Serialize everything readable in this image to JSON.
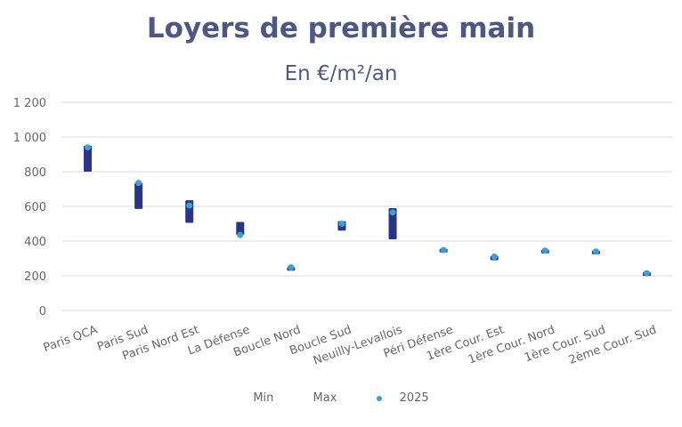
{
  "chart_data": {
    "type": "range-bar",
    "title": "Loyers de première main",
    "subtitle": "En €/m²/an",
    "xlabel": "",
    "ylabel": "",
    "ylim": [
      0,
      1200
    ],
    "yticks": [
      0,
      200,
      400,
      600,
      800,
      1000,
      1200
    ],
    "ytick_labels": [
      "0",
      "200",
      "400",
      "600",
      "800",
      "1 000",
      "1 200"
    ],
    "grid": true,
    "legend_position": "bottom",
    "categories": [
      "Paris QCA",
      "Paris Sud",
      "Paris Nord Est",
      "La Défense",
      "Boucle Nord",
      "Boucle Sud",
      "Neuilly-Levallois",
      "Péri Défense",
      "1ère Cour. Est",
      "1ère Cour. Nord",
      "1ère Cour. Sud",
      "2ème Cour. Sud"
    ],
    "series": [
      {
        "name": "Min",
        "values": [
          800,
          585,
          505,
          435,
          245,
          460,
          410,
          340,
          290,
          335,
          335,
          210
        ]
      },
      {
        "name": "Max",
        "values": [
          950,
          735,
          635,
          510,
          250,
          515,
          590,
          355,
          315,
          350,
          345,
          220
        ]
      },
      {
        "name": "2025",
        "values": [
          940,
          735,
          605,
          435,
          248,
          500,
          565,
          348,
          310,
          345,
          340,
          215
        ]
      }
    ],
    "colors": {
      "range": "#27348b",
      "point": "#3aa0d8",
      "grid": "#d9d9d9"
    }
  }
}
